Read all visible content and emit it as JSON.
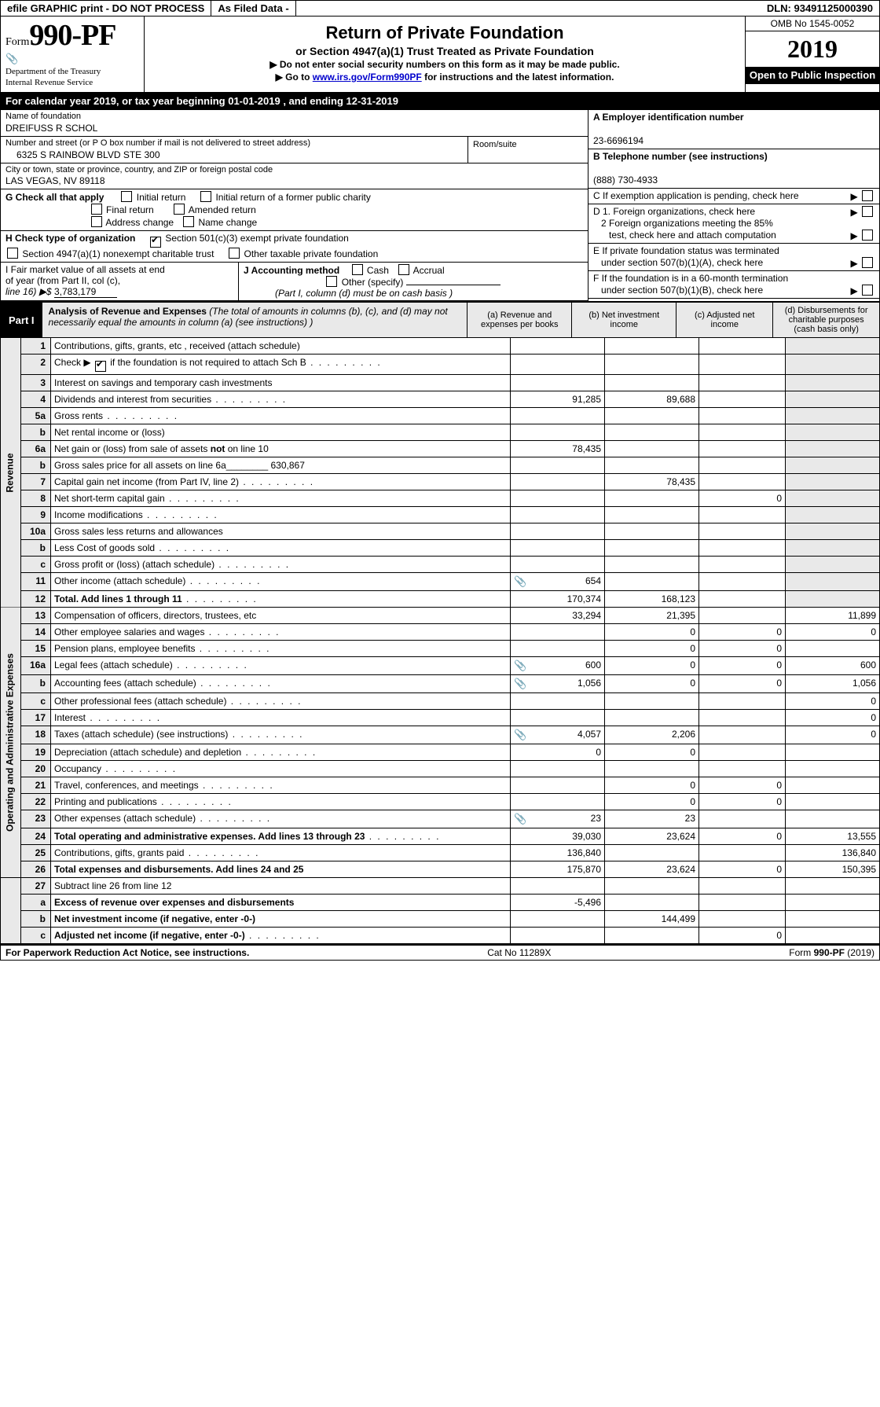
{
  "topbar": {
    "efile": "efile GRAPHIC print - DO NOT PROCESS",
    "asfiled": "As Filed Data -",
    "dln": "DLN: 93491125000390"
  },
  "header": {
    "form_label": "Form",
    "form_number": "990-PF",
    "dept1": "Department of the Treasury",
    "dept2": "Internal Revenue Service",
    "title": "Return of Private Foundation",
    "subtitle": "or Section 4947(a)(1) Trust Treated as Private Foundation",
    "note1": "▶ Do not enter social security numbers on this form as it may be made public.",
    "note2_pre": "▶ Go to ",
    "note2_link": "www.irs.gov/Form990PF",
    "note2_post": " for instructions and the latest information.",
    "omb": "OMB No 1545-0052",
    "year": "2019",
    "open": "Open to Public Inspection"
  },
  "cal": {
    "text": "For calendar year 2019, or tax year beginning 01-01-2019             , and ending 12-31-2019"
  },
  "info": {
    "name_lbl": "Name of foundation",
    "name": "DREIFUSS R SCHOL",
    "addr_lbl": "Number and street (or P O  box number if mail is not delivered to street address)",
    "addr": "6325 S RAINBOW BLVD STE 300",
    "room_lbl": "Room/suite",
    "city_lbl": "City or town, state or province, country, and ZIP or foreign postal code",
    "city": "LAS VEGAS, NV  89118",
    "g_lbl": "G Check all that apply",
    "g_opts": [
      "Initial return",
      "Initial return of a former public charity",
      "Final return",
      "Amended return",
      "Address change",
      "Name change"
    ],
    "h_lbl": "H Check type of organization",
    "h_opt1": "Section 501(c)(3) exempt private foundation",
    "h_opt2": "Section 4947(a)(1) nonexempt charitable trust",
    "h_opt3": "Other taxable private foundation",
    "i_lbl1": "I Fair market value of all assets at end",
    "i_lbl2": "of year (from Part II, col  (c),",
    "i_lbl3": "line 16) ▶$ ",
    "i_val": "3,783,179",
    "j_lbl": "J Accounting method",
    "j_cash": "Cash",
    "j_accrual": "Accrual",
    "j_other": "Other (specify)",
    "j_note": "(Part I, column (d) must be on cash basis )",
    "a_lbl": "A Employer identification number",
    "a_val": "23-6696194",
    "b_lbl": "B Telephone number (see instructions)",
    "b_val": "(888) 730-4933",
    "c_lbl": "C If exemption application is pending, check here",
    "d1": "D 1. Foreign organizations, check here",
    "d2a": "2  Foreign organizations meeting the 85%",
    "d2b": "test, check here and attach computation",
    "e1": "E  If private foundation status was terminated",
    "e2": "under section 507(b)(1)(A), check here",
    "f1": "F  If the foundation is in a 60-month termination",
    "f2": "under section 507(b)(1)(B), check here"
  },
  "part1": {
    "tag": "Part I",
    "title": "Analysis of Revenue and Expenses",
    "title_note": " (The total of amounts in columns (b), (c), and (d) may not necessarily equal the amounts in column (a) (see instructions) )",
    "col_a": "(a)   Revenue and expenses per books",
    "col_b": "(b)   Net investment income",
    "col_c": "(c)   Adjusted net income",
    "col_d": "(d)   Disbursements for charitable purposes (cash basis only)"
  },
  "sections": {
    "revenue": "Revenue",
    "expenses": "Operating and Administrative Expenses"
  },
  "rows": [
    {
      "sec": "rev",
      "n": "1",
      "d": "Contributions, gifts, grants, etc , received (attach schedule)",
      "a": "",
      "b": "",
      "c": "",
      "e": ""
    },
    {
      "sec": "rev",
      "n": "2",
      "d": "Check ▶ ☑ if the foundation is not required to attach Sch  B",
      "a": "",
      "b": "",
      "c": "",
      "e": "",
      "dots": true
    },
    {
      "sec": "rev",
      "n": "3",
      "d": "Interest on savings and temporary cash investments",
      "a": "",
      "b": "",
      "c": "",
      "e": ""
    },
    {
      "sec": "rev",
      "n": "4",
      "d": "Dividends and interest from securities",
      "a": "91,285",
      "b": "89,688",
      "c": "",
      "e": "",
      "dots": true
    },
    {
      "sec": "rev",
      "n": "5a",
      "d": "Gross rents",
      "a": "",
      "b": "",
      "c": "",
      "e": "",
      "dots": true
    },
    {
      "sec": "rev",
      "n": "b",
      "d": "Net rental income or (loss)  ",
      "a": "",
      "b": "",
      "c": "",
      "e": ""
    },
    {
      "sec": "rev",
      "n": "6a",
      "d": "Net gain or (loss) from sale of assets not on line 10",
      "a": "78,435",
      "b": "",
      "c": "",
      "e": ""
    },
    {
      "sec": "rev",
      "n": "b",
      "d": "Gross sales price for all assets on line 6a________ 630,867",
      "a": "",
      "b": "",
      "c": "",
      "e": ""
    },
    {
      "sec": "rev",
      "n": "7",
      "d": "Capital gain net income (from Part IV, line 2)",
      "a": "",
      "b": "78,435",
      "c": "",
      "e": "",
      "dots": true
    },
    {
      "sec": "rev",
      "n": "8",
      "d": "Net short-term capital gain",
      "a": "",
      "b": "",
      "c": "0",
      "e": "",
      "dots": true
    },
    {
      "sec": "rev",
      "n": "9",
      "d": "Income modifications",
      "a": "",
      "b": "",
      "c": "",
      "e": "",
      "dots": true
    },
    {
      "sec": "rev",
      "n": "10a",
      "d": "Gross sales less returns and allowances ",
      "a": "",
      "b": "",
      "c": "",
      "e": ""
    },
    {
      "sec": "rev",
      "n": "b",
      "d": "Less  Cost of goods sold",
      "a": "",
      "b": "",
      "c": "",
      "e": "",
      "dots": true
    },
    {
      "sec": "rev",
      "n": "c",
      "d": "Gross profit or (loss) (attach schedule)",
      "a": "",
      "b": "",
      "c": "",
      "e": "",
      "dots": true
    },
    {
      "sec": "rev",
      "n": "11",
      "d": "Other income (attach schedule)",
      "a": "654",
      "b": "",
      "c": "",
      "e": "",
      "dots": true,
      "icon": true
    },
    {
      "sec": "rev",
      "n": "12",
      "d": "Total. Add lines 1 through 11",
      "a": "170,374",
      "b": "168,123",
      "c": "",
      "e": "",
      "bold": true,
      "dots": true
    },
    {
      "sec": "exp",
      "n": "13",
      "d": "Compensation of officers, directors, trustees, etc",
      "a": "33,294",
      "b": "21,395",
      "c": "",
      "e": "11,899"
    },
    {
      "sec": "exp",
      "n": "14",
      "d": "Other employee salaries and wages",
      "a": "",
      "b": "0",
      "c": "0",
      "e": "0",
      "dots": true
    },
    {
      "sec": "exp",
      "n": "15",
      "d": "Pension plans, employee benefits",
      "a": "",
      "b": "0",
      "c": "0",
      "e": "",
      "dots": true
    },
    {
      "sec": "exp",
      "n": "16a",
      "d": "Legal fees (attach schedule)",
      "a": "600",
      "b": "0",
      "c": "0",
      "e": "600",
      "dots": true,
      "icon": true
    },
    {
      "sec": "exp",
      "n": "b",
      "d": "Accounting fees (attach schedule)",
      "a": "1,056",
      "b": "0",
      "c": "0",
      "e": "1,056",
      "dots": true,
      "icon": true
    },
    {
      "sec": "exp",
      "n": "c",
      "d": "Other professional fees (attach schedule)",
      "a": "",
      "b": "",
      "c": "",
      "e": "0",
      "dots": true
    },
    {
      "sec": "exp",
      "n": "17",
      "d": "Interest",
      "a": "",
      "b": "",
      "c": "",
      "e": "0",
      "dots": true
    },
    {
      "sec": "exp",
      "n": "18",
      "d": "Taxes (attach schedule) (see instructions)",
      "a": "4,057",
      "b": "2,206",
      "c": "",
      "e": "0",
      "dots": true,
      "icon": true
    },
    {
      "sec": "exp",
      "n": "19",
      "d": "Depreciation (attach schedule) and depletion",
      "a": "0",
      "b": "0",
      "c": "",
      "e": "",
      "dots": true
    },
    {
      "sec": "exp",
      "n": "20",
      "d": "Occupancy",
      "a": "",
      "b": "",
      "c": "",
      "e": "",
      "dots": true
    },
    {
      "sec": "exp",
      "n": "21",
      "d": "Travel, conferences, and meetings",
      "a": "",
      "b": "0",
      "c": "0",
      "e": "",
      "dots": true
    },
    {
      "sec": "exp",
      "n": "22",
      "d": "Printing and publications",
      "a": "",
      "b": "0",
      "c": "0",
      "e": "",
      "dots": true
    },
    {
      "sec": "exp",
      "n": "23",
      "d": "Other expenses (attach schedule)",
      "a": "23",
      "b": "23",
      "c": "",
      "e": "",
      "dots": true,
      "icon": true
    },
    {
      "sec": "exp",
      "n": "24",
      "d": "Total operating and administrative expenses. Add lines 13 through 23",
      "a": "39,030",
      "b": "23,624",
      "c": "0",
      "e": "13,555",
      "bold": true,
      "dots": true
    },
    {
      "sec": "exp",
      "n": "25",
      "d": "Contributions, gifts, grants paid",
      "a": "136,840",
      "b": "",
      "c": "",
      "e": "136,840",
      "dots": true
    },
    {
      "sec": "exp",
      "n": "26",
      "d": "Total expenses and disbursements. Add lines 24 and 25",
      "a": "175,870",
      "b": "23,624",
      "c": "0",
      "e": "150,395",
      "bold": true
    },
    {
      "sec": "bot",
      "n": "27",
      "d": "Subtract line 26 from line 12",
      "a": "",
      "b": "",
      "c": "",
      "e": ""
    },
    {
      "sec": "bot",
      "n": "a",
      "d": "Excess of revenue over expenses and disbursements",
      "a": "-5,496",
      "b": "",
      "c": "",
      "e": "",
      "bold": true
    },
    {
      "sec": "bot",
      "n": "b",
      "d": "Net investment income (if negative, enter -0-)",
      "a": "",
      "b": "144,499",
      "c": "",
      "e": "",
      "bold": true
    },
    {
      "sec": "bot",
      "n": "c",
      "d": "Adjusted net income (if negative, enter -0-)",
      "a": "",
      "b": "",
      "c": "0",
      "e": "",
      "bold": true,
      "dots": true
    }
  ],
  "footer": {
    "left": "For Paperwork Reduction Act Notice, see instructions.",
    "mid": "Cat  No  11289X",
    "right": "Form 990-PF (2019)"
  },
  "colors": {
    "shade": "#e9e9e9",
    "link": "#0000cc"
  }
}
